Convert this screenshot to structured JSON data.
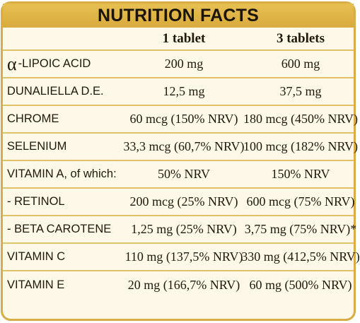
{
  "title": "NUTRITION FACTS",
  "columns": [
    "1 tablet",
    "3 tablets"
  ],
  "rows": [
    {
      "name_prefix": "α",
      "name": "-LIPOIC ACID",
      "v1": "200 mg",
      "v2": "600 mg"
    },
    {
      "name": "DUNALIELLA D.E.",
      "v1": "12,5 mg",
      "v2": "37,5 mg"
    },
    {
      "name": "CHROME",
      "v1": "60 mcg (150% NRV)",
      "v2": "180 mcg (450% NRV)"
    },
    {
      "name": "SELENIUM",
      "v1": "33,3 mcg (60,7% NRV)",
      "v2": "100 mcg (182% NRV)"
    },
    {
      "name": "VITAMIN A, of which:",
      "v1": "50% NRV",
      "v2": "150% NRV"
    },
    {
      "name": "- RETINOL",
      "v1": "200 mcg (25% NRV)",
      "v2": "600 mcg (75% NRV)"
    },
    {
      "name": "- BETA CAROTENE",
      "v1": "1,25 mg (25% NRV)",
      "v2": "3,75 mg (75% NRV)*"
    },
    {
      "name": "VITAMIN C",
      "v1": "110 mg (137,5% NRV)",
      "v2": "330 mg (412,5% NRV)"
    },
    {
      "name": "VITAMIN E",
      "v1": "20 mg (166,7% NRV)",
      "v2": "60 mg (500% NRV)"
    }
  ],
  "colors": {
    "border": "#d9ad45",
    "header": "#dfb548",
    "background": "#fdf8e7",
    "divider": "#e3c267"
  }
}
